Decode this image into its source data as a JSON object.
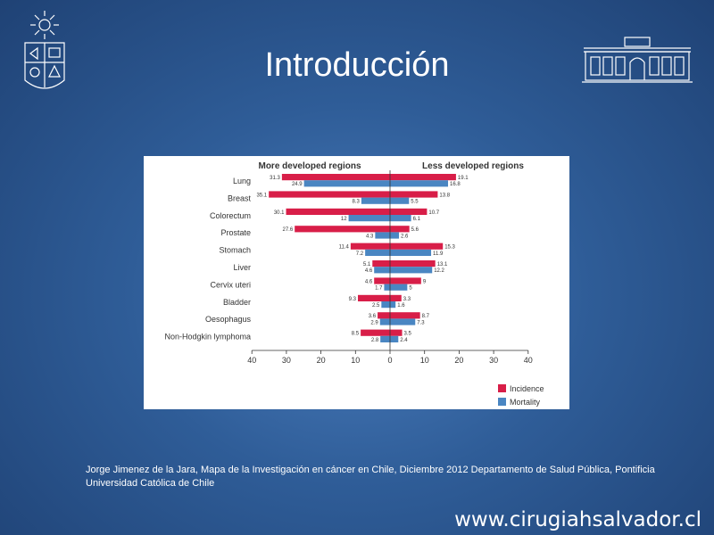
{
  "slide": {
    "title": "Introducción",
    "citation": "Jorge Jimenez de la Jara, Mapa de la Investigación en cáncer en Chile, Diciembre 2012 Departamento de Salud Pública, Pontificia Universidad Católica de Chile",
    "website": "www.cirugiahsalvador.cl"
  },
  "colors": {
    "incidence": "#d81e48",
    "mortality": "#4a86c2",
    "background": "#2f5d98"
  },
  "chart_data": {
    "type": "bar",
    "orientation": "horizontal-diverging",
    "left_header": "More developed regions",
    "right_header": "Less developed regions",
    "categories": [
      "Lung",
      "Breast",
      "Colorectum",
      "Prostate",
      "Stomach",
      "Liver",
      "Cervix uteri",
      "Bladder",
      "Oesophagus",
      "Non-Hodgkin lymphoma"
    ],
    "x_ticks": [
      "40",
      "30",
      "20",
      "10",
      "0",
      "10",
      "20",
      "30",
      "40"
    ],
    "xlim": [
      -40,
      40
    ],
    "series": [
      {
        "name": "Incidence",
        "region": "More developed regions",
        "values": [
          31.3,
          35.1,
          30.1,
          27.6,
          11.4,
          5.1,
          4.6,
          9.3,
          3.6,
          8.5
        ]
      },
      {
        "name": "Mortality",
        "region": "More developed regions",
        "values": [
          24.9,
          8.3,
          12,
          4.3,
          7.2,
          4.6,
          1.7,
          2.5,
          2.9,
          2.8
        ]
      },
      {
        "name": "Incidence",
        "region": "Less developed regions",
        "values": [
          19.1,
          13.8,
          10.7,
          5.6,
          15.3,
          13.1,
          9,
          3.3,
          8.7,
          3.5
        ]
      },
      {
        "name": "Mortality",
        "region": "Less developed regions",
        "values": [
          16.8,
          5.5,
          6.1,
          2.6,
          11.9,
          12.2,
          5,
          1.6,
          7.3,
          2.4
        ]
      }
    ],
    "left_labels": {
      "incidence": [
        "31.3",
        "35.1",
        "30.1",
        "27.6",
        "11.4",
        "5.1",
        "4.6",
        "9.3",
        "3.6",
        "8.5"
      ],
      "mortality": [
        "24.9",
        "8.3",
        "12",
        "4.3",
        "7.2",
        "4.6",
        "1.7",
        "2.5",
        "2.9",
        "2.8"
      ]
    },
    "right_labels": {
      "incidence": [
        "19.1",
        "13.8",
        "10.7",
        "5.6",
        "15.3",
        "13.1",
        "9",
        "3.3",
        "8.7",
        "3.5"
      ],
      "mortality": [
        "16.8",
        "5.5",
        "6.1",
        "2.6",
        "11.9",
        "12.2",
        "5",
        "1.6",
        "7.3",
        "2.4"
      ]
    },
    "legend": [
      "Incidence",
      "Mortality"
    ],
    "legend_position": "bottom-right",
    "grid": false
  }
}
